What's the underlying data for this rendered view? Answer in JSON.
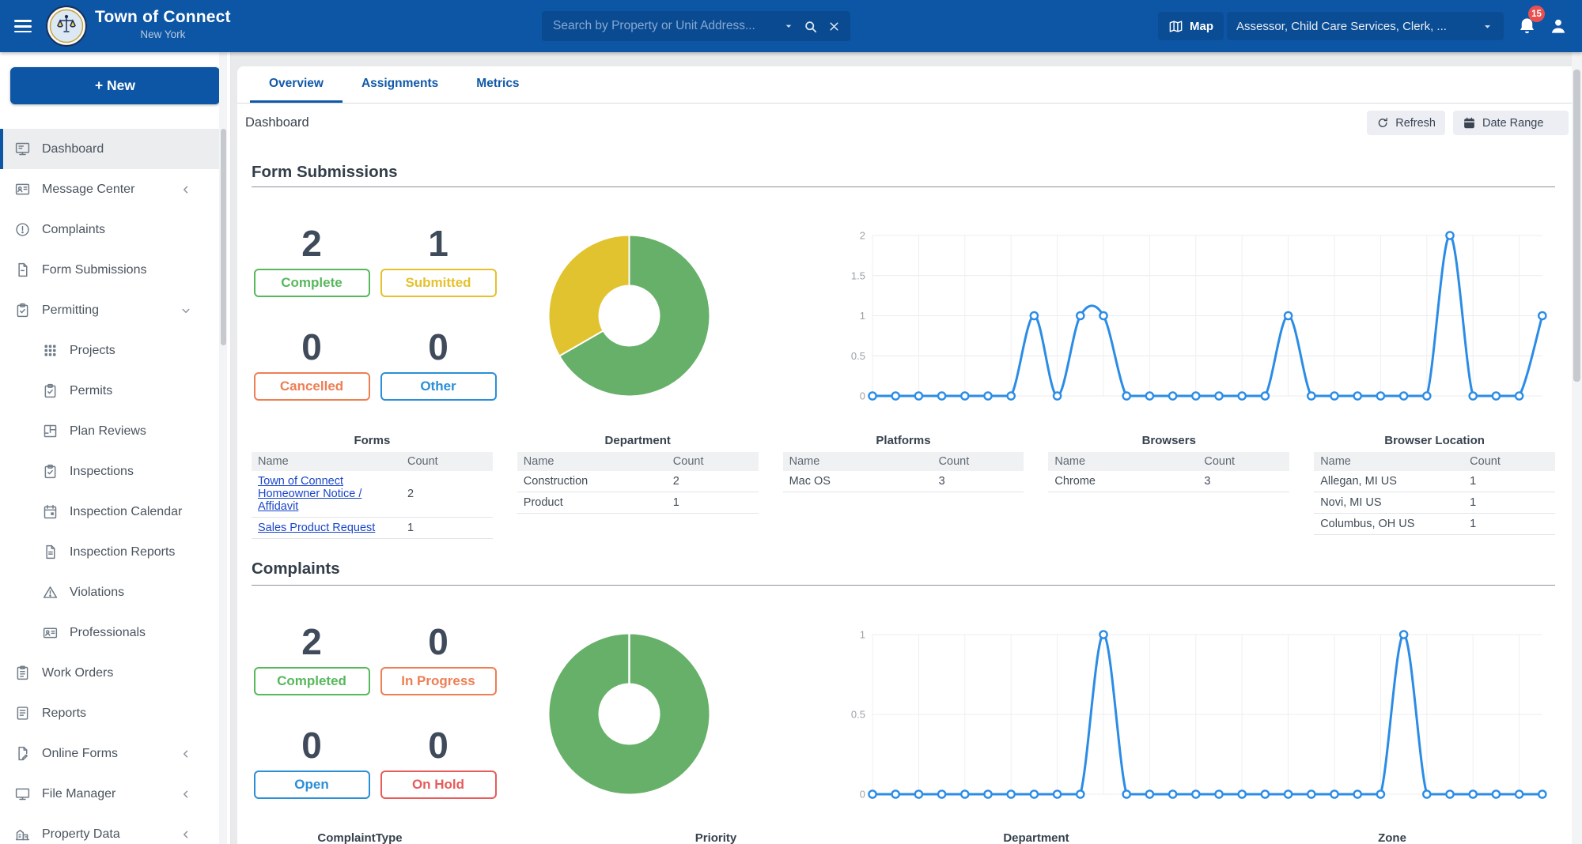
{
  "header": {
    "app_title": "Town of Connect",
    "app_subtitle": "New York",
    "search_placeholder": "Search by Property or Unit Address...",
    "map_button": "Map",
    "department_selector": "Assessor, Child Care Services, Clerk, ...",
    "notification_count": "15"
  },
  "sidebar": {
    "new_button": "+ New",
    "items": [
      {
        "label": "Dashboard",
        "icon": "dashboard",
        "active": true
      },
      {
        "label": "Message Center",
        "icon": "message-center",
        "chevron": "left"
      },
      {
        "label": "Complaints",
        "icon": "complaints"
      },
      {
        "label": "Form Submissions",
        "icon": "form-submissions"
      },
      {
        "label": "Permitting",
        "icon": "permitting",
        "chevron": "down"
      },
      {
        "label": "Projects",
        "icon": "projects",
        "indent": true
      },
      {
        "label": "Permits",
        "icon": "permits",
        "indent": true
      },
      {
        "label": "Plan Reviews",
        "icon": "plan-reviews",
        "indent": true
      },
      {
        "label": "Inspections",
        "icon": "inspections",
        "indent": true
      },
      {
        "label": "Inspection Calendar",
        "icon": "inspection-calendar",
        "indent": true
      },
      {
        "label": "Inspection Reports",
        "icon": "inspection-reports",
        "indent": true
      },
      {
        "label": "Violations",
        "icon": "violations",
        "indent": true
      },
      {
        "label": "Professionals",
        "icon": "professionals",
        "indent": true
      },
      {
        "label": "Work Orders",
        "icon": "work-orders"
      },
      {
        "label": "Reports",
        "icon": "reports"
      },
      {
        "label": "Online Forms",
        "icon": "online-forms",
        "chevron": "left"
      },
      {
        "label": "File Manager",
        "icon": "file-manager",
        "chevron": "left"
      },
      {
        "label": "Property Data",
        "icon": "property-data",
        "chevron": "left"
      }
    ]
  },
  "tabs": {
    "items": [
      "Overview",
      "Assignments",
      "Metrics"
    ],
    "active": "Overview"
  },
  "toolbar": {
    "page_title": "Dashboard",
    "refresh": "Refresh",
    "date_range": "Date Range"
  },
  "form_submissions": {
    "heading": "Form Submissions",
    "stats": [
      {
        "value": "2",
        "label": "Complete",
        "color": "#57b85c"
      },
      {
        "value": "1",
        "label": "Submitted",
        "color": "#e5c12e"
      },
      {
        "value": "0",
        "label": "Cancelled",
        "color": "#ee7e54"
      },
      {
        "value": "0",
        "label": "Other",
        "color": "#2a8fd7"
      }
    ],
    "tables": [
      {
        "title": "Forms",
        "columns": [
          "Name",
          "Count"
        ],
        "links": true,
        "rows": [
          [
            "Town of Connect Homeowner Notice / Affidavit",
            "2"
          ],
          [
            "Sales Product Request",
            "1"
          ]
        ]
      },
      {
        "title": "Department",
        "columns": [
          "Name",
          "Count"
        ],
        "rows": [
          [
            "Construction",
            "2"
          ],
          [
            "Product",
            "1"
          ]
        ]
      },
      {
        "title": "Platforms",
        "columns": [
          "Name",
          "Count"
        ],
        "rows": [
          [
            "Mac OS",
            "3"
          ]
        ]
      },
      {
        "title": "Browsers",
        "columns": [
          "Name",
          "Count"
        ],
        "rows": [
          [
            "Chrome",
            "3"
          ]
        ]
      },
      {
        "title": "Browser Location",
        "columns": [
          "Name",
          "Count"
        ],
        "rows": [
          [
            "Allegan, MI US",
            "1"
          ],
          [
            "Novi, MI US",
            "1"
          ],
          [
            "Columbus, OH US",
            "1"
          ]
        ]
      }
    ]
  },
  "complaints": {
    "heading": "Complaints",
    "stats": [
      {
        "value": "2",
        "label": "Completed",
        "color": "#57b85c"
      },
      {
        "value": "0",
        "label": "In Progress",
        "color": "#ee7e54"
      },
      {
        "value": "0",
        "label": "Open",
        "color": "#2a8fd7"
      },
      {
        "value": "0",
        "label": "On Hold",
        "color": "#e85b5b"
      }
    ],
    "partial_table_titles": [
      "ComplaintType",
      "Priority",
      "Department",
      "Zone"
    ]
  },
  "chart_data": [
    {
      "type": "pie",
      "title": "Form Submissions status donut",
      "labels": [
        "Complete",
        "Submitted"
      ],
      "values": [
        2,
        1
      ],
      "colors": [
        "#67b069",
        "#e1c32f"
      ]
    },
    {
      "type": "line",
      "title": "Form Submissions over time",
      "ylim": [
        0,
        2
      ],
      "yticks": [
        "2",
        "1.5",
        "1",
        "0.5",
        "0"
      ],
      "color": "#2b8ce6",
      "values": [
        0,
        0,
        0,
        0,
        0,
        0,
        0,
        1,
        0,
        1,
        1,
        0,
        0,
        0,
        0,
        0,
        0,
        0,
        1,
        0,
        0,
        0,
        0,
        0,
        0,
        2,
        0,
        0,
        0,
        1
      ]
    },
    {
      "type": "pie",
      "title": "Complaints status donut",
      "labels": [
        "Completed"
      ],
      "values": [
        2
      ],
      "colors": [
        "#67b069"
      ]
    },
    {
      "type": "line",
      "title": "Complaints over time",
      "ylim": [
        0,
        1
      ],
      "yticks": [
        "1",
        "0.5",
        "0"
      ],
      "color": "#2b8ce6",
      "values": [
        0,
        0,
        0,
        0,
        0,
        0,
        0,
        0,
        0,
        0,
        1,
        0,
        0,
        0,
        0,
        0,
        0,
        0,
        0,
        0,
        0,
        0,
        0,
        1,
        0,
        0,
        0,
        0,
        0,
        0
      ]
    }
  ]
}
